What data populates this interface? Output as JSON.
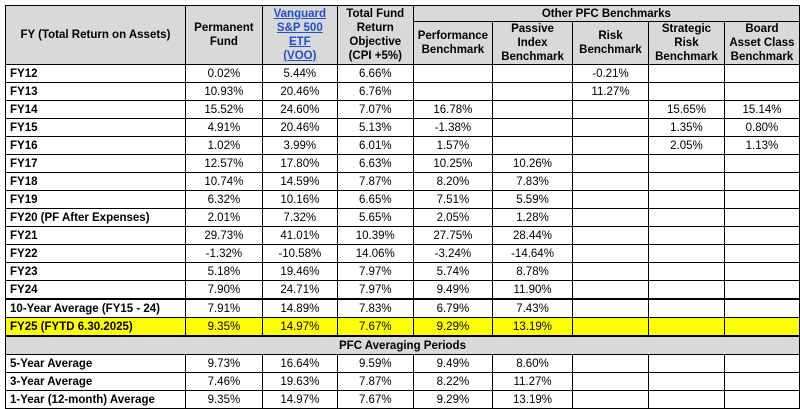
{
  "header": {
    "fy_label": "FY (Total Return on Assets)",
    "permanent_fund": "Permanent Fund",
    "vanguard_line1": "Vanguard",
    "vanguard_line2": "S&P 500 ETF",
    "vanguard_line3": "(VOO)",
    "total_fund_objective": "Total Fund Return Objective (CPI +5%)",
    "other_benchmarks": "Other PFC Benchmarks",
    "performance": "Performance Benchmark",
    "passive_index": "Passive Index Benchmark",
    "risk": "Risk Benchmark",
    "strategic_risk": "Strategic Risk Benchmark",
    "board_asset": "Board Asset Class Benchmark"
  },
  "rows": [
    {
      "label": "FY12",
      "pf": "0.02%",
      "voo": "5.44%",
      "obj": "6.66%",
      "perf": "",
      "passive": "",
      "risk": "-0.21%",
      "strat": "",
      "board": ""
    },
    {
      "label": "FY13",
      "pf": "10.93%",
      "voo": "20.46%",
      "obj": "6.76%",
      "perf": "",
      "passive": "",
      "risk": "11.27%",
      "strat": "",
      "board": ""
    },
    {
      "label": "FY14",
      "pf": "15.52%",
      "voo": "24.60%",
      "obj": "7.07%",
      "perf": "16.78%",
      "passive": "",
      "risk": "",
      "strat": "15.65%",
      "board": "15.14%"
    },
    {
      "label": "FY15",
      "pf": "4.91%",
      "voo": "20.46%",
      "obj": "5.13%",
      "perf": "-1.38%",
      "passive": "",
      "risk": "",
      "strat": "1.35%",
      "board": "0.80%"
    },
    {
      "label": "FY16",
      "pf": "1.02%",
      "voo": "3.99%",
      "obj": "6.01%",
      "perf": "1.57%",
      "passive": "",
      "risk": "",
      "strat": "2.05%",
      "board": "1.13%"
    },
    {
      "label": "FY17",
      "pf": "12.57%",
      "voo": "17.80%",
      "obj": "6.63%",
      "perf": "10.25%",
      "passive": "10.26%",
      "risk": "",
      "strat": "",
      "board": ""
    },
    {
      "label": "FY18",
      "pf": "10.74%",
      "voo": "14.59%",
      "obj": "7.87%",
      "perf": "8.20%",
      "passive": "7.83%",
      "risk": "",
      "strat": "",
      "board": ""
    },
    {
      "label": "FY19",
      "pf": "6.32%",
      "voo": "10.16%",
      "obj": "6.65%",
      "perf": "7.51%",
      "passive": "5.59%",
      "risk": "",
      "strat": "",
      "board": ""
    },
    {
      "label": "FY20 (PF After Expenses)",
      "pf": "2.01%",
      "voo": "7.32%",
      "obj": "5.65%",
      "perf": "2.05%",
      "passive": "1.28%",
      "risk": "",
      "strat": "",
      "board": ""
    },
    {
      "label": "FY21",
      "pf": "29.73%",
      "voo": "41.01%",
      "obj": "10.39%",
      "perf": "27.75%",
      "passive": "28.44%",
      "risk": "",
      "strat": "",
      "board": ""
    },
    {
      "label": "FY22",
      "pf": "-1.32%",
      "voo": "-10.58%",
      "obj": "14.06%",
      "perf": "-3.24%",
      "passive": "-14.64%",
      "risk": "",
      "strat": "",
      "board": ""
    },
    {
      "label": "FY23",
      "pf": "5.18%",
      "voo": "19.46%",
      "obj": "7.97%",
      "perf": "5.74%",
      "passive": "8.78%",
      "risk": "",
      "strat": "",
      "board": ""
    },
    {
      "label": "FY24",
      "pf": "7.90%",
      "voo": "24.71%",
      "obj": "7.97%",
      "perf": "9.49%",
      "passive": "11.90%",
      "risk": "",
      "strat": "",
      "board": ""
    }
  ],
  "ten_year": {
    "label": "10-Year Average (FY15 - 24)",
    "pf": "7.91%",
    "voo": "14.89%",
    "obj": "7.83%",
    "perf": "6.79%",
    "passive": "7.43%"
  },
  "fy25": {
    "label": "FY25 (FYTD 6.30.2025)",
    "pf": "9.35%",
    "voo": "14.97%",
    "obj": "7.67%",
    "perf": "9.29%",
    "passive": "13.19%"
  },
  "averaging_title": "PFC Averaging Periods",
  "averages": [
    {
      "label": "5-Year Average",
      "pf": "9.73%",
      "voo": "16.64%",
      "obj": "9.59%",
      "perf": "9.49%",
      "passive": "8.60%"
    },
    {
      "label": "3-Year Average",
      "pf": "7.46%",
      "voo": "19.63%",
      "obj": "7.87%",
      "perf": "8.22%",
      "passive": "11.27%"
    },
    {
      "label": "1-Year (12-month) Average",
      "pf": "9.35%",
      "voo": "14.97%",
      "obj": "7.67%",
      "perf": "9.29%",
      "passive": "13.19%"
    }
  ]
}
